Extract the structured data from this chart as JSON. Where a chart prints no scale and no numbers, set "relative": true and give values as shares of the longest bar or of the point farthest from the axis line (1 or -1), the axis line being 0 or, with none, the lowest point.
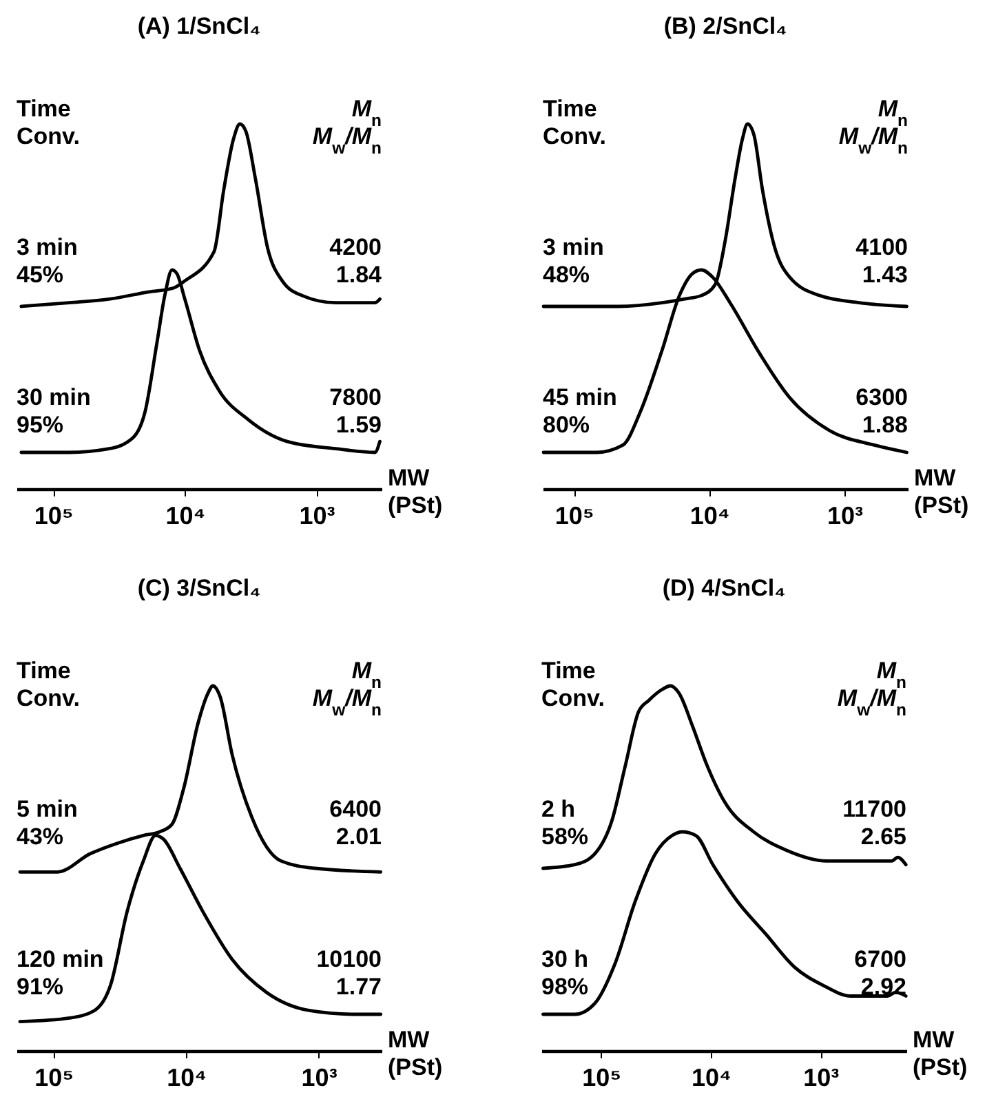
{
  "chart_data": [
    {
      "type": "line",
      "title": "(A) 1/SnCl₄",
      "xlabel": "MW\n(PSt)",
      "relative": true,
      "log": "x",
      "xlim": [
        190000,
        320
      ],
      "xticks": [
        {
          "value": 100000,
          "label": "10⁵"
        },
        {
          "value": 10000,
          "label": "10⁴"
        },
        {
          "value": 1000,
          "label": "10³"
        }
      ],
      "annotations": [
        "Time\nConv.",
        "M$_{n}$\nM$_{w}$/M$_{n}$",
        "3 min\n45%",
        "4200\n1.84",
        "30 min\n95%",
        "7800\n1.59"
      ],
      "series": [
        {
          "color": "#000000",
          "x": [
            175000,
            75700,
            37700,
            18700,
            12300,
            10000,
            6000,
            5060,
            4260,
            3820,
            3440,
            2910,
            2350,
            1820,
            1290,
            710,
            360,
            330
          ],
          "values": [
            0.5,
            0.51,
            0.52,
            0.54,
            0.55,
            0.57,
            0.65,
            0.82,
            0.96,
            1,
            0.98,
            0.85,
            0.66,
            0.57,
            0.53,
            0.51,
            0.51,
            0.52
          ]
        },
        {
          "color": "#000000",
          "x": [
            175000,
            75700,
            37700,
            24800,
            20100,
            16300,
            14200,
            12500,
            11500,
            10000,
            7740,
            5500,
            3300,
            1670,
            710,
            360,
            330
          ],
          "values": [
            0.1,
            0.1,
            0.11,
            0.14,
            0.21,
            0.4,
            0.53,
            0.6,
            0.59,
            0.52,
            0.38,
            0.27,
            0.19,
            0.13,
            0.11,
            0.1,
            0.13
          ]
        }
      ]
    },
    {
      "type": "line",
      "title": "(B) 2/SnCl₄",
      "xlabel": "MW\n(PSt)",
      "relative": true,
      "log": "x",
      "xlim": [
        170000,
        340
      ],
      "xticks": [
        {
          "value": 100000,
          "label": "10⁵"
        },
        {
          "value": 10000,
          "label": "10⁴"
        },
        {
          "value": 1000,
          "label": "10³"
        }
      ],
      "annotations": [
        "Time\nConv.",
        "M$_{n}$\nM$_{w}$/M$_{n}$",
        "3 min\n48%",
        "4100\n1.43",
        "45 min\n80%",
        "6300\n1.88"
      ],
      "series": [
        {
          "color": "#000000",
          "x": [
            168000,
            46900,
            22300,
            15400,
            11400,
            9040,
            7620,
            6440,
            5670,
            5210,
            4670,
            4040,
            3270,
            2540,
            1530,
            776,
            346
          ],
          "values": [
            0.5,
            0.5,
            0.51,
            0.52,
            0.53,
            0.56,
            0.68,
            0.85,
            0.96,
            1,
            0.97,
            0.82,
            0.66,
            0.58,
            0.53,
            0.51,
            0.5
          ]
        },
        {
          "color": "#000000",
          "x": [
            168000,
            68000,
            43500,
            32400,
            22300,
            16600,
            13300,
            11400,
            9420,
            7010,
            4220,
            2540,
            1290,
            601,
            346
          ],
          "values": [
            0.1,
            0.1,
            0.12,
            0.21,
            0.38,
            0.53,
            0.59,
            0.6,
            0.58,
            0.51,
            0.37,
            0.25,
            0.16,
            0.12,
            0.1
          ]
        }
      ]
    },
    {
      "type": "line",
      "title": "(C) 3/SnCl₄",
      "xlabel": "MW\n(PSt)",
      "relative": true,
      "log": "x",
      "xlim": [
        190000,
        335
      ],
      "xticks": [
        {
          "value": 100000,
          "label": "10⁵"
        },
        {
          "value": 10000,
          "label": "10⁴"
        },
        {
          "value": 1000,
          "label": "10³"
        }
      ],
      "annotations": [
        "Time\nConv.",
        "M$_{n}$\nM$_{w}$/M$_{n}$",
        "5 min\n43%",
        "6400\n2.01",
        "120 min\n91%",
        "10100\n1.77"
      ],
      "series": [
        {
          "color": "#000000",
          "x": [
            179000,
            93200,
            52800,
            32200,
            21000,
            15800,
            12800,
            10400,
            8090,
            6830,
            6280,
            5530,
            4480,
            3190,
            1920,
            1060,
            340
          ],
          "values": [
            0.49,
            0.49,
            0.54,
            0.57,
            0.59,
            0.6,
            0.62,
            0.72,
            0.9,
            0.98,
            1,
            0.97,
            0.81,
            0.64,
            0.52,
            0.5,
            0.49
          ]
        },
        {
          "color": "#000000",
          "x": [
            179000,
            75300,
            49200,
            37100,
            27900,
            21000,
            17000,
            14800,
            11100,
            7430,
            4480,
            2470,
            1160,
            540,
            340
          ],
          "values": [
            0.08,
            0.09,
            0.11,
            0.18,
            0.38,
            0.52,
            0.59,
            0.58,
            0.5,
            0.38,
            0.25,
            0.16,
            0.11,
            0.1,
            0.1
          ]
        }
      ]
    },
    {
      "type": "line",
      "title": "(D) 4/SnCl₄",
      "xlabel": "MW\n(PSt)",
      "relative": true,
      "log": "x",
      "xlim": [
        350000,
        165
      ],
      "xticks": [
        {
          "value": 100000,
          "label": "10⁵"
        },
        {
          "value": 10000,
          "label": "10⁴"
        },
        {
          "value": 1000,
          "label": "10³"
        }
      ],
      "annotations": [
        "Time\nConv.",
        "M$_{n}$\nM$_{w}$/M$_{n}$",
        "2 h\n58%",
        "11700\n2.65",
        "30 h\n98%",
        "6700\n2.92"
      ],
      "series": [
        {
          "color": "#000000",
          "x": [
            338000,
            173000,
            114000,
            79800,
            60300,
            45400,
            36800,
            27800,
            23300,
            19500,
            14700,
            11100,
            7420,
            4080,
            2070,
            880,
            375,
            225,
            198,
            167
          ],
          "values": [
            0.5,
            0.51,
            0.54,
            0.63,
            0.78,
            0.93,
            0.96,
            0.99,
            1,
            0.98,
            0.89,
            0.79,
            0.68,
            0.6,
            0.55,
            0.52,
            0.52,
            0.52,
            0.53,
            0.51
          ]
        },
        {
          "color": "#000000",
          "x": [
            338000,
            173000,
            114000,
            74400,
            48800,
            32000,
            22500,
            18200,
            13700,
            9580,
            5740,
            3160,
            1740,
            958,
            527,
            245,
            207,
            167
          ],
          "values": [
            0.1,
            0.1,
            0.13,
            0.24,
            0.41,
            0.54,
            0.59,
            0.6,
            0.59,
            0.51,
            0.41,
            0.32,
            0.23,
            0.18,
            0.15,
            0.15,
            0.16,
            0.15
          ]
        }
      ]
    }
  ]
}
